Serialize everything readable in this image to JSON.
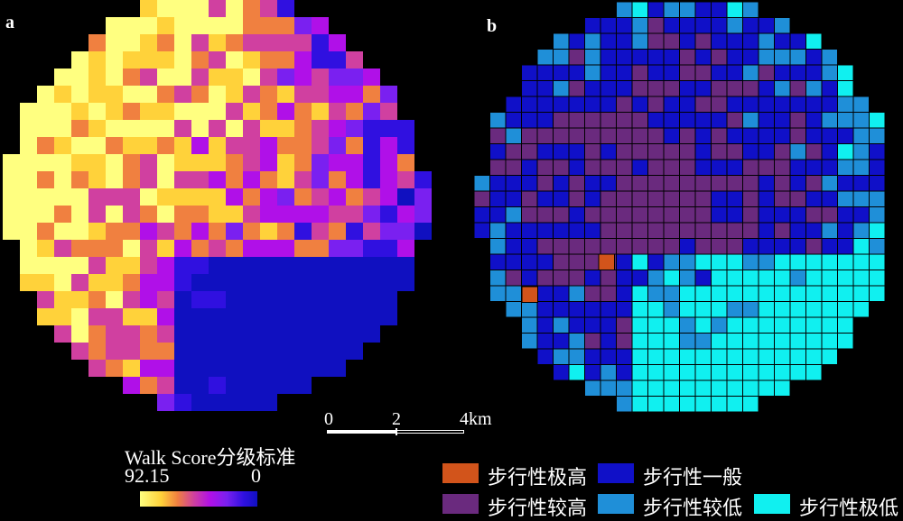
{
  "panels": {
    "a_label": "a",
    "b_label": "b"
  },
  "scale_bar": {
    "ticks": [
      "0",
      "2",
      "4km"
    ]
  },
  "legend_continuous": {
    "title": "Walk Score分级标准",
    "max_label": "92.15",
    "min_label": "0",
    "ramp_colors": [
      "#ffff80",
      "#ffd23a",
      "#f08040",
      "#d040a0",
      "#b010e8",
      "#7a20f0",
      "#3010e0",
      "#1010c0"
    ]
  },
  "legend_categories": [
    {
      "label": "步行性极高",
      "color": "#d2541b"
    },
    {
      "label": "步行性较高",
      "color": "#6a2a7e"
    },
    {
      "label": "步行性一般",
      "color": "#1010c8"
    },
    {
      "label": "步行性较低",
      "color": "#1f8fd8"
    },
    {
      "label": "步行性极低",
      "color": "#10f0f0"
    }
  ],
  "map_colors": {
    "background": "#000000",
    "grid_line": "#000000"
  }
}
